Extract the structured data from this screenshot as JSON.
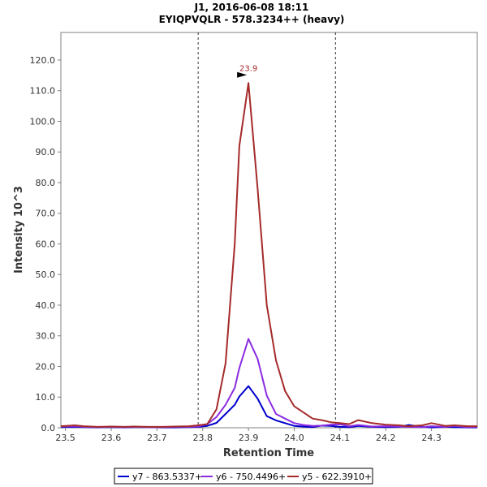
{
  "chart_data": {
    "type": "line",
    "title": "J1, 2016-06-08 18:11",
    "subtitle": "EYIQPVQLR - 578.3234++ (heavy)",
    "xlabel": "Retention Time",
    "ylabel": "Intensity 10^3",
    "xlim": [
      23.49,
      24.4
    ],
    "ylim": [
      0,
      129
    ],
    "x_ticks": [
      "23.5",
      "23.6",
      "23.7",
      "23.8",
      "23.9",
      "24.0",
      "24.1",
      "24.2",
      "24.3"
    ],
    "y_ticks": [
      "0.0",
      "10.0",
      "20.0",
      "30.0",
      "40.0",
      "50.0",
      "60.0",
      "70.0",
      "80.0",
      "90.0",
      "100.0",
      "110.0",
      "120.0"
    ],
    "grid": false,
    "legend_position": "bottom",
    "vlines": [
      23.79,
      24.09
    ],
    "peak_annotation": {
      "x": 23.9,
      "y": 112.5,
      "label": "23.9",
      "color": "#a52a2a"
    },
    "x": [
      23.49,
      23.52,
      23.54,
      23.57,
      23.6,
      23.63,
      23.65,
      23.68,
      23.71,
      23.74,
      23.77,
      23.79,
      23.81,
      23.83,
      23.85,
      23.87,
      23.88,
      23.9,
      23.92,
      23.94,
      23.96,
      23.98,
      24.0,
      24.02,
      24.04,
      24.06,
      24.08,
      24.1,
      24.12,
      24.14,
      24.17,
      24.2,
      24.23,
      24.25,
      24.28,
      24.3,
      24.33,
      24.35,
      24.38,
      24.4
    ],
    "series": [
      {
        "name": "y7 - 863.5337+",
        "color": "#0000cc",
        "values": [
          0.2,
          0.3,
          0.2,
          0.1,
          0.2,
          0.1,
          0.2,
          0.2,
          0.1,
          0.1,
          0.2,
          0.3,
          0.6,
          1.6,
          4.5,
          7.5,
          10.2,
          13.6,
          9.5,
          3.8,
          2.4,
          1.5,
          0.6,
          0.4,
          0.2,
          0.7,
          0.6,
          0.3,
          0.2,
          0.6,
          0.3,
          0.2,
          0.3,
          0.9,
          0.3,
          0.1,
          0.3,
          0.2,
          0.1,
          0.1
        ]
      },
      {
        "name": "y6 - 750.4496+",
        "color": "#8a2be2",
        "values": [
          0.4,
          0.5,
          0.3,
          0.2,
          0.3,
          0.2,
          0.3,
          0.2,
          0.2,
          0.3,
          0.3,
          0.4,
          1.2,
          3.5,
          7.5,
          13.0,
          19.5,
          29.0,
          22.5,
          10.5,
          4.5,
          3.0,
          1.5,
          0.9,
          0.6,
          0.7,
          1.0,
          1.1,
          0.5,
          0.9,
          0.4,
          0.5,
          0.4,
          0.3,
          0.2,
          0.5,
          0.3,
          0.6,
          0.2,
          0.3
        ]
      },
      {
        "name": "y5 - 622.3910+",
        "color": "#a52a2a",
        "values": [
          0.5,
          0.8,
          0.5,
          0.3,
          0.4,
          0.3,
          0.4,
          0.3,
          0.3,
          0.4,
          0.5,
          0.8,
          1.2,
          6.0,
          21.0,
          60.0,
          92.0,
          112.5,
          78.0,
          40.0,
          22.0,
          12.0,
          7.0,
          5.0,
          3.0,
          2.5,
          1.8,
          1.5,
          1.2,
          2.5,
          1.5,
          1.0,
          0.8,
          0.5,
          0.8,
          1.5,
          0.6,
          0.8,
          0.5,
          0.5
        ]
      }
    ]
  }
}
